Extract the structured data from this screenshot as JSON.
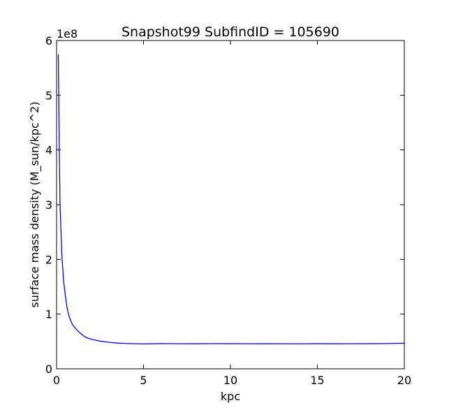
{
  "chart_data": {
    "type": "line",
    "title": "Snapshot99 SubfindID = 105690",
    "xlabel": "kpc",
    "ylabel": "surface mass density (M_sun/kpc^2)",
    "y_scale_label": "1e8",
    "xlim": [
      0,
      20
    ],
    "ylim": [
      0,
      600000000
    ],
    "xticks": [
      0,
      5,
      10,
      15,
      20
    ],
    "xtick_labels": [
      "0",
      "5",
      "10",
      "15",
      "20"
    ],
    "yticks": [
      0,
      100000000,
      200000000,
      300000000,
      400000000,
      500000000,
      600000000
    ],
    "ytick_labels": [
      "0",
      "1",
      "2",
      "3",
      "4",
      "5",
      "6"
    ],
    "grid": false,
    "line_color": "#0000ff",
    "series": [
      {
        "x": [
          0.1,
          0.15,
          0.2,
          0.3,
          0.4,
          0.5,
          0.6,
          0.7,
          0.8,
          0.9,
          1.0,
          1.2,
          1.4,
          1.6,
          1.8,
          2.0,
          2.5,
          3.0,
          3.5,
          4.0,
          4.5,
          5.0,
          5.5,
          6.0,
          7.0,
          8.0,
          9.0,
          10.0,
          11.0,
          12.0,
          13.0,
          14.0,
          15.0,
          16.0,
          17.0,
          18.0,
          19.0,
          19.5,
          20.0
        ],
        "y": [
          575000000,
          420000000,
          300000000,
          210000000,
          162000000,
          135000000,
          112000000,
          98000000,
          89000000,
          82000000,
          77000000,
          70000000,
          64000000,
          59000000,
          56000000,
          54000000,
          50500000,
          48500000,
          47000000,
          46300000,
          45800000,
          45500000,
          45700000,
          46100000,
          45800000,
          45700000,
          46000000,
          45900000,
          45800000,
          45700000,
          45800000,
          45600000,
          45900000,
          45700000,
          45800000,
          45900000,
          46100000,
          46400000,
          46700000
        ]
      }
    ]
  }
}
